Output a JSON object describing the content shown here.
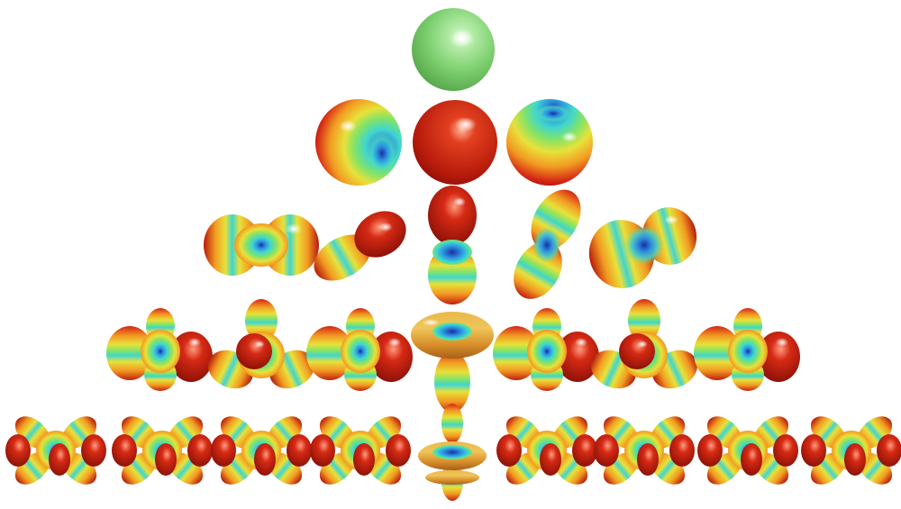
{
  "figure": {
    "background": "#ffffff",
    "colormap": [
      "#1a2f9e",
      "#2b8fe0",
      "#3fd6d0",
      "#7fe36a",
      "#e8e13a",
      "#f29a22",
      "#d42515",
      "#8f0d06"
    ],
    "rows": [
      {
        "l": 0,
        "orbitals": [
          {
            "m": 0,
            "kind": "s-sphere"
          }
        ]
      },
      {
        "l": 1,
        "orbitals": [
          {
            "m": -1,
            "kind": "p-sphere-dimple"
          },
          {
            "m": 0,
            "kind": "p-sphere-red"
          },
          {
            "m": 1,
            "kind": "p-sphere-top-dimple"
          }
        ]
      },
      {
        "l": 2,
        "orbitals": [
          {
            "m": -2,
            "kind": "d-peanut"
          },
          {
            "m": -1,
            "kind": "d-tilted"
          },
          {
            "m": 0,
            "kind": "d-z2"
          },
          {
            "m": 1,
            "kind": "d-tilted-right"
          },
          {
            "m": 2,
            "kind": "d-peanut-tilted"
          }
        ]
      },
      {
        "l": 3,
        "orbitals": [
          {
            "m": -3,
            "kind": "f-lobes"
          },
          {
            "m": -2,
            "kind": "f-tetra"
          },
          {
            "m": -1,
            "kind": "f-lobes"
          },
          {
            "m": 0,
            "kind": "f-z3"
          },
          {
            "m": 1,
            "kind": "f-lobes"
          },
          {
            "m": 2,
            "kind": "f-tetra"
          },
          {
            "m": 3,
            "kind": "f-lobes"
          }
        ]
      },
      {
        "l": 4,
        "orbitals": [
          {
            "m": -4,
            "kind": "g-clover"
          },
          {
            "m": -3,
            "kind": "g-clover"
          },
          {
            "m": -2,
            "kind": "g-clover"
          },
          {
            "m": -1,
            "kind": "g-clover"
          },
          {
            "m": 0,
            "kind": "g-z4"
          },
          {
            "m": 1,
            "kind": "g-clover"
          },
          {
            "m": 2,
            "kind": "g-clover"
          },
          {
            "m": 3,
            "kind": "g-clover"
          },
          {
            "m": 4,
            "kind": "g-clover"
          }
        ]
      }
    ]
  }
}
